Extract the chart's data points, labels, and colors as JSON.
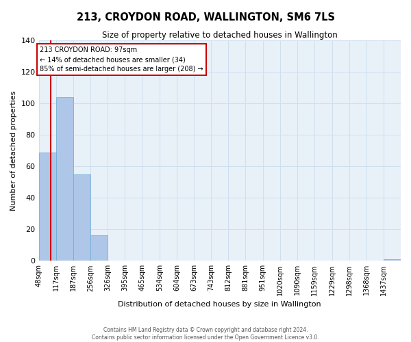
{
  "title": "213, CROYDON ROAD, WALLINGTON, SM6 7LS",
  "subtitle": "Size of property relative to detached houses in Wallington",
  "xlabel": "Distribution of detached houses by size in Wallington",
  "ylabel": "Number of detached properties",
  "bin_edges": [
    48,
    117,
    187,
    256,
    326,
    395,
    465,
    534,
    604,
    673,
    743,
    812,
    881,
    951,
    1020,
    1090,
    1159,
    1229,
    1298,
    1368,
    1437
  ],
  "bin_labels": [
    "48sqm",
    "117sqm",
    "187sqm",
    "256sqm",
    "326sqm",
    "395sqm",
    "465sqm",
    "534sqm",
    "604sqm",
    "673sqm",
    "743sqm",
    "812sqm",
    "881sqm",
    "951sqm",
    "1020sqm",
    "1090sqm",
    "1159sqm",
    "1229sqm",
    "1298sqm",
    "1368sqm",
    "1437sqm"
  ],
  "counts": [
    69,
    104,
    55,
    16,
    0,
    0,
    0,
    0,
    0,
    0,
    0,
    0,
    0,
    0,
    0,
    0,
    0,
    0,
    0,
    0,
    1
  ],
  "bar_color": "#aec6e8",
  "bar_edgecolor": "#6aaad4",
  "property_size": 97,
  "property_label": "213 CROYDON ROAD: 97sqm",
  "annotation_line1": "← 14% of detached houses are smaller (34)",
  "annotation_line2": "85% of semi-detached houses are larger (208) →",
  "vline_color": "#cc0000",
  "annotation_box_edgecolor": "#cc0000",
  "annotation_box_facecolor": "#ffffff",
  "ylim": [
    0,
    140
  ],
  "yticks": [
    0,
    20,
    40,
    60,
    80,
    100,
    120,
    140
  ],
  "grid_color": "#d0dff0",
  "bg_color": "#e8f0f8",
  "footer_line1": "Contains HM Land Registry data © Crown copyright and database right 2024.",
  "footer_line2": "Contains public sector information licensed under the Open Government Licence v3.0."
}
